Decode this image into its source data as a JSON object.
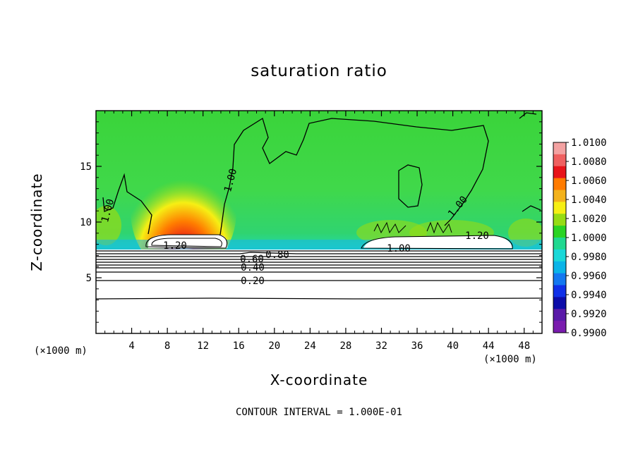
{
  "chart_data": {
    "type": "heatmap",
    "title": "saturation ratio",
    "xlabel": "X-coordinate",
    "ylabel": "Z-coordinate",
    "x_unit_note": "(×1000 m)",
    "xlim": [
      0,
      50
    ],
    "ylim": [
      0,
      20
    ],
    "x_ticks": [
      4,
      8,
      12,
      16,
      20,
      24,
      28,
      32,
      36,
      40,
      44,
      48
    ],
    "y_ticks": [
      5,
      10,
      15
    ],
    "colorbar": {
      "ticks": [
        "1.0100",
        "1.0080",
        "1.0060",
        "1.0040",
        "1.0020",
        "1.0000",
        "0.9980",
        "0.9960",
        "0.9940",
        "0.9920",
        "0.9900"
      ],
      "colors": [
        "#f3a2a2",
        "#ef6060",
        "#e8141a",
        "#ff7b00",
        "#f3b21c",
        "#f6ef14",
        "#96dc14",
        "#2ad424",
        "#20d890",
        "#1ad8d8",
        "#0ab4e8",
        "#1478f0",
        "#1030e8",
        "#0c0ca8",
        "#5a1aa8",
        "#7a1cae"
      ]
    },
    "contour_labels": [
      "1.00",
      "1.00",
      "1.00",
      "1.00",
      "1.20",
      "1.20",
      "0.80",
      "0.60",
      "0.40",
      "0.20"
    ],
    "contour_interval_text": "CONTOUR INTERVAL = 1.000E-01"
  }
}
